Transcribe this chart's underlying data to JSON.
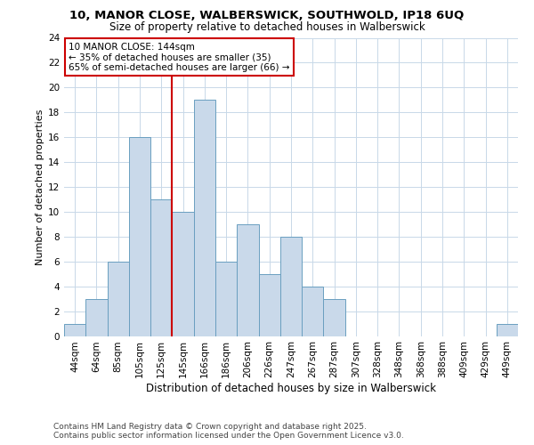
{
  "title1": "10, MANOR CLOSE, WALBERSWICK, SOUTHWOLD, IP18 6UQ",
  "title2": "Size of property relative to detached houses in Walberswick",
  "xlabel": "Distribution of detached houses by size in Walberswick",
  "ylabel": "Number of detached properties",
  "bar_labels": [
    "44sqm",
    "64sqm",
    "85sqm",
    "105sqm",
    "125sqm",
    "145sqm",
    "166sqm",
    "186sqm",
    "206sqm",
    "226sqm",
    "247sqm",
    "267sqm",
    "287sqm",
    "307sqm",
    "328sqm",
    "348sqm",
    "368sqm",
    "388sqm",
    "409sqm",
    "429sqm",
    "449sqm"
  ],
  "bar_values": [
    1,
    3,
    6,
    16,
    11,
    10,
    19,
    6,
    9,
    5,
    8,
    4,
    3,
    0,
    0,
    0,
    0,
    0,
    0,
    0,
    1
  ],
  "bar_color": "#c9d9ea",
  "bar_edgecolor": "#6a9fc0",
  "vline_index": 4.5,
  "property_line_label": "10 MANOR CLOSE: 144sqm",
  "annotation_line1": "← 35% of detached houses are smaller (35)",
  "annotation_line2": "65% of semi-detached houses are larger (66) →",
  "annotation_box_color": "#ffffff",
  "annotation_box_edgecolor": "#cc0000",
  "vline_color": "#cc0000",
  "ylim": [
    0,
    24
  ],
  "yticks": [
    0,
    2,
    4,
    6,
    8,
    10,
    12,
    14,
    16,
    18,
    20,
    22,
    24
  ],
  "footnote1": "Contains HM Land Registry data © Crown copyright and database right 2025.",
  "footnote2": "Contains public sector information licensed under the Open Government Licence v3.0.",
  "title_fontsize": 9.5,
  "subtitle_fontsize": 8.5,
  "axis_label_fontsize": 8,
  "tick_fontsize": 7.5,
  "annot_fontsize": 7.5,
  "footnote_fontsize": 6.5,
  "bg_color": "#ffffff",
  "grid_color": "#c8d8e8"
}
